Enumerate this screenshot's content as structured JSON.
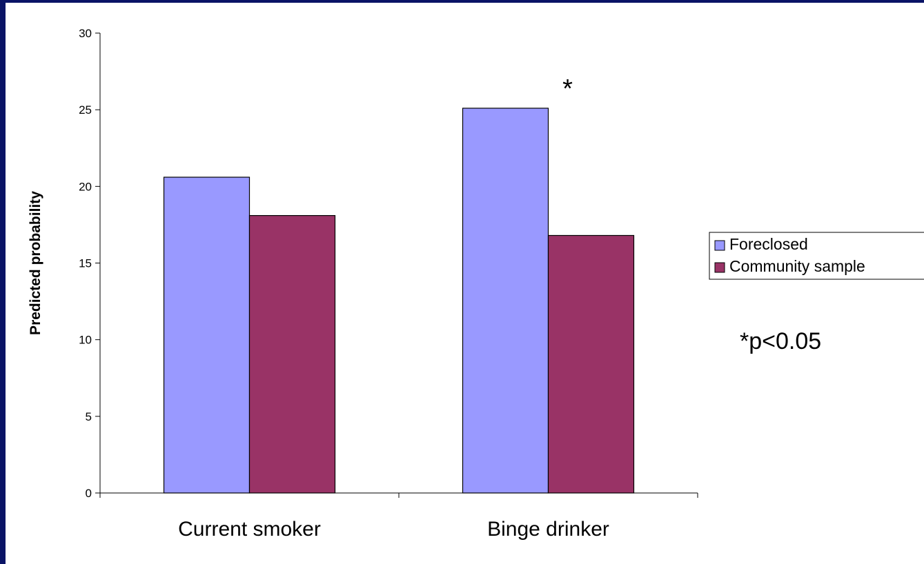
{
  "colors": {
    "slide_border": "#0a1466",
    "background": "#ffffff"
  },
  "chart_data": {
    "type": "bar",
    "title": "",
    "xlabel": "",
    "ylabel": "Predicted probability",
    "ylim": [
      0,
      30
    ],
    "yticks": [
      "0",
      "5",
      "10",
      "15",
      "20",
      "25",
      "30"
    ],
    "categories": [
      "Current smoker",
      "Binge drinker"
    ],
    "series": [
      {
        "name": "Foreclosed",
        "values": [
          20.6,
          25.1
        ],
        "color": "#9999ff"
      },
      {
        "name": "Community sample",
        "values": [
          18.1,
          16.8
        ],
        "color": "#993366"
      }
    ],
    "annotations": [
      {
        "text": "*",
        "category": "Binge drinker",
        "series": "Foreclosed"
      }
    ],
    "note": "*p<0.05",
    "legend_position": "right",
    "grid": false
  }
}
